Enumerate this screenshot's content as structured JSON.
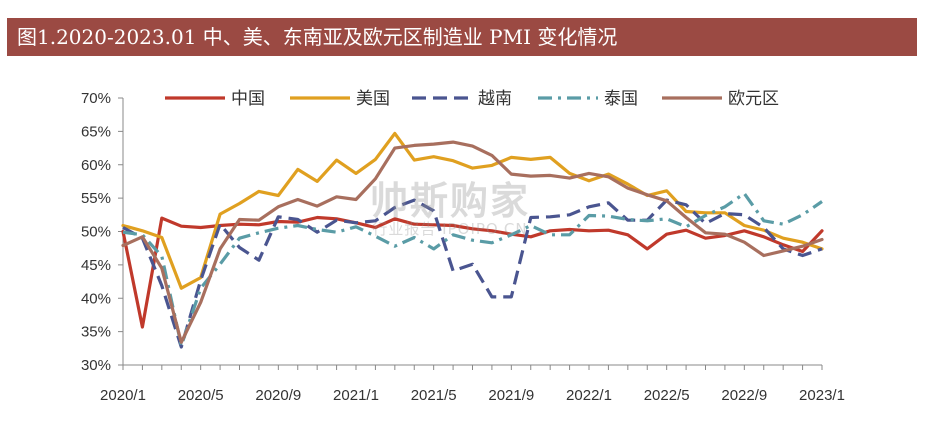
{
  "title": "图1.2020-2023.01 中、美、东南亚及欧元区制造业 PMI 变化情况",
  "watermark": {
    "main": "帅斯购家",
    "sub": "行业报告 IPOIPO.CN"
  },
  "chart_data": {
    "type": "line",
    "ylim": [
      30,
      70
    ],
    "yticks": [
      "30%",
      "35%",
      "40%",
      "45%",
      "50%",
      "55%",
      "60%",
      "65%",
      "70%"
    ],
    "xtick_labels": [
      "2020/1",
      "2020/5",
      "2020/9",
      "2021/1",
      "2021/5",
      "2021/9",
      "2022/1",
      "2022/5",
      "2022/9",
      "2023/1"
    ],
    "x": [
      "2020/1",
      "2020/2",
      "2020/3",
      "2020/4",
      "2020/5",
      "2020/6",
      "2020/7",
      "2020/8",
      "2020/9",
      "2020/10",
      "2020/11",
      "2020/12",
      "2021/1",
      "2021/2",
      "2021/3",
      "2021/4",
      "2021/5",
      "2021/6",
      "2021/7",
      "2021/8",
      "2021/9",
      "2021/10",
      "2021/11",
      "2021/12",
      "2022/1",
      "2022/2",
      "2022/3",
      "2022/4",
      "2022/5",
      "2022/6",
      "2022/7",
      "2022/8",
      "2022/9",
      "2022/10",
      "2022/11",
      "2022/12",
      "2023/1"
    ],
    "grid": false,
    "legend_position": "top",
    "series": [
      {
        "name": "中国",
        "color": "#c0392b",
        "dash": "solid",
        "values": [
          50.0,
          35.7,
          52.0,
          50.8,
          50.6,
          50.9,
          51.1,
          51.0,
          51.5,
          51.4,
          52.1,
          51.9,
          51.3,
          50.6,
          51.9,
          51.1,
          51.0,
          50.9,
          50.4,
          50.1,
          49.6,
          49.2,
          50.1,
          50.3,
          50.1,
          50.2,
          49.5,
          47.4,
          49.6,
          50.2,
          49.0,
          49.4,
          50.1,
          49.2,
          48.0,
          47.0,
          50.1
        ]
      },
      {
        "name": "美国",
        "color": "#e0a020",
        "dash": "solid",
        "values": [
          50.9,
          50.1,
          49.1,
          41.5,
          43.1,
          52.6,
          54.2,
          56.0,
          55.4,
          59.3,
          57.5,
          60.7,
          58.7,
          60.8,
          64.7,
          60.7,
          61.2,
          60.6,
          59.5,
          59.9,
          61.1,
          60.8,
          61.1,
          58.7,
          57.6,
          58.6,
          57.1,
          55.4,
          56.1,
          53.0,
          52.8,
          52.8,
          50.9,
          50.2,
          49.0,
          48.4,
          47.4
        ]
      },
      {
        "name": "越南",
        "color": "#4a5590",
        "dash": "dashed",
        "values": [
          50.6,
          49.0,
          41.9,
          32.7,
          42.7,
          51.1,
          47.6,
          45.7,
          52.2,
          51.8,
          49.9,
          51.7,
          51.3,
          51.6,
          53.6,
          54.7,
          53.1,
          44.1,
          45.1,
          40.2,
          40.2,
          52.1,
          52.2,
          52.5,
          53.7,
          54.3,
          51.7,
          51.7,
          54.7,
          54.0,
          51.2,
          52.7,
          52.5,
          50.6,
          47.4,
          46.4,
          47.4
        ]
      },
      {
        "name": "泰国",
        "color": "#5a9ca6",
        "dash": "dashdot",
        "values": [
          49.9,
          49.5,
          46.3,
          32.9,
          41.5,
          45.1,
          49.0,
          49.8,
          50.5,
          50.9,
          50.3,
          49.9,
          50.7,
          49.3,
          47.8,
          49.1,
          47.4,
          49.5,
          48.7,
          48.3,
          49.5,
          50.9,
          49.5,
          49.5,
          52.4,
          52.3,
          51.8,
          51.6,
          51.9,
          50.7,
          52.4,
          53.7,
          55.7,
          51.6,
          51.1,
          52.5,
          54.5
        ]
      },
      {
        "name": "欧元区",
        "color": "#a86f5e",
        "dash": "solid",
        "values": [
          47.9,
          49.2,
          44.5,
          33.4,
          39.4,
          47.4,
          51.8,
          51.7,
          53.7,
          54.8,
          53.8,
          55.2,
          54.8,
          57.9,
          62.5,
          62.9,
          63.1,
          63.4,
          62.8,
          61.4,
          58.6,
          58.3,
          58.4,
          58.0,
          58.7,
          58.2,
          56.5,
          55.5,
          54.6,
          52.1,
          49.8,
          49.6,
          48.4,
          46.4,
          47.1,
          47.8,
          48.8
        ]
      }
    ]
  }
}
